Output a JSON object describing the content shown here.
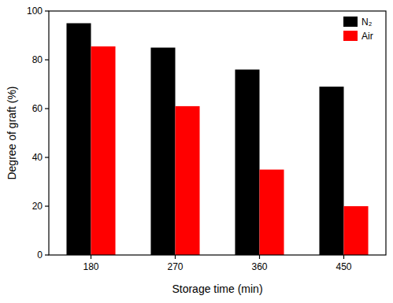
{
  "chart_data": {
    "type": "bar",
    "x_label": "Storage time (min)",
    "y_label": "Degree of graft (%)",
    "categories": [
      "180",
      "270",
      "360",
      "450"
    ],
    "series": [
      {
        "name": "N₂",
        "color": "#000000",
        "values": [
          95,
          85,
          76,
          69
        ]
      },
      {
        "name": "Air",
        "color": "#ff0000",
        "values": [
          85.5,
          61,
          35,
          20
        ]
      }
    ],
    "ylim": [
      0,
      100
    ],
    "yticks": [
      0,
      20,
      40,
      60,
      80,
      100
    ],
    "grid": false,
    "legend": "upper right"
  }
}
